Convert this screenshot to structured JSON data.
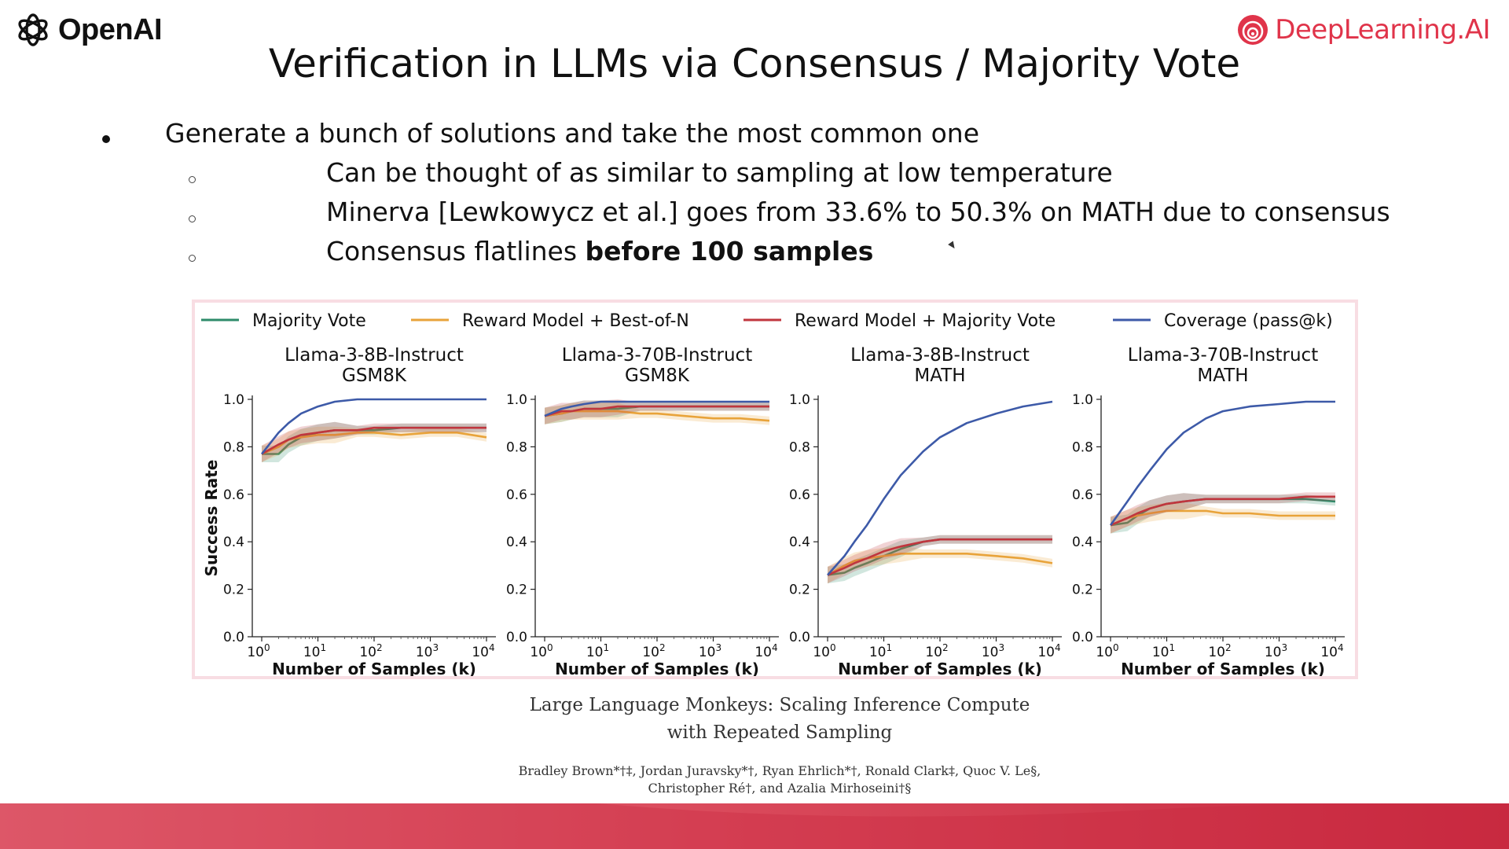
{
  "header": {
    "left_logo_text": "OpenAI",
    "right_logo_text": "DeepLearning.AI",
    "brand_color": "#e0344a"
  },
  "slide": {
    "title": "Verification in LLMs via Consensus / Majority Vote",
    "bullet": "Generate a bunch of solutions and take the most common one",
    "sub1": "Can be thought of as similar to sampling at low temperature",
    "sub2": "Minerva [Lewkowycz et al.] goes from 33.6% to 50.3% on MATH due to consensus",
    "sub3_plain": "Consensus flatlines ",
    "sub3_bold": "before 100 samples"
  },
  "citation": {
    "title_line1": "Large Language Monkeys: Scaling Inference Compute",
    "title_line2": "with Repeated Sampling",
    "authors_line1": "Bradley Brown*†‡, Jordan Juravsky*†, Ryan Ehrlich*†, Ronald Clark‡, Quoc V. Le§,",
    "authors_line2": "Christopher Ré†, and Azalia Mirhoseini†§"
  },
  "chart_data": {
    "type": "line",
    "legend": {
      "placement": "top",
      "entries": [
        "Majority Vote",
        "Reward Model + Best-of-N",
        "Reward Model + Majority Vote",
        "Coverage (pass@k)"
      ]
    },
    "colors": {
      "Majority Vote": "#2e8b6a",
      "Reward Model + Best-of-N": "#e8a33a",
      "Reward Model + Majority Vote": "#c0363e",
      "Coverage (pass@k)": "#3d5aa8"
    },
    "ylabel": "Success Rate",
    "xlabel": "Number of Samples (k)",
    "x": [
      1,
      2,
      3,
      5,
      10,
      20,
      50,
      100,
      300,
      1000,
      3000,
      10000
    ],
    "xscale": "log",
    "xlim": [
      1,
      10000
    ],
    "ylim": [
      0,
      1.0
    ],
    "yticks": [
      "0.0",
      "0.2",
      "0.4",
      "0.6",
      "0.8",
      "1.0"
    ],
    "panels": [
      {
        "title_line1": "Llama-3-8B-Instruct",
        "title_line2": "GSM8K",
        "series": [
          {
            "name": "Majority Vote",
            "values": [
              0.77,
              0.77,
              0.81,
              0.84,
              0.86,
              0.87,
              0.87,
              0.87,
              0.88,
              0.88,
              0.88,
              0.88
            ]
          },
          {
            "name": "Reward Model + Best-of-N",
            "values": [
              0.77,
              0.8,
              0.83,
              0.84,
              0.85,
              0.85,
              0.86,
              0.86,
              0.85,
              0.86,
              0.86,
              0.84
            ]
          },
          {
            "name": "Reward Model + Majority Vote",
            "values": [
              0.77,
              0.81,
              0.83,
              0.85,
              0.86,
              0.87,
              0.87,
              0.88,
              0.88,
              0.88,
              0.88,
              0.88
            ]
          },
          {
            "name": "Coverage (pass@k)",
            "values": [
              0.77,
              0.86,
              0.9,
              0.94,
              0.97,
              0.99,
              1.0,
              1.0,
              1.0,
              1.0,
              1.0,
              1.0
            ]
          }
        ]
      },
      {
        "title_line1": "Llama-3-70B-Instruct",
        "title_line2": "GSM8K",
        "series": [
          {
            "name": "Majority Vote",
            "values": [
              0.93,
              0.94,
              0.95,
              0.96,
              0.96,
              0.96,
              0.97,
              0.97,
              0.97,
              0.97,
              0.97,
              0.97
            ]
          },
          {
            "name": "Reward Model + Best-of-N",
            "values": [
              0.93,
              0.94,
              0.95,
              0.95,
              0.95,
              0.95,
              0.94,
              0.94,
              0.93,
              0.92,
              0.92,
              0.91
            ]
          },
          {
            "name": "Reward Model + Majority Vote",
            "values": [
              0.93,
              0.95,
              0.95,
              0.96,
              0.96,
              0.97,
              0.97,
              0.97,
              0.97,
              0.97,
              0.97,
              0.97
            ]
          },
          {
            "name": "Coverage (pass@k)",
            "values": [
              0.93,
              0.96,
              0.97,
              0.98,
              0.99,
              0.99,
              0.99,
              0.99,
              0.99,
              0.99,
              0.99,
              0.99
            ]
          }
        ]
      },
      {
        "title_line1": "Llama-3-8B-Instruct",
        "title_line2": "MATH",
        "series": [
          {
            "name": "Majority Vote",
            "values": [
              0.26,
              0.27,
              0.29,
              0.31,
              0.34,
              0.37,
              0.4,
              0.41,
              0.41,
              0.41,
              0.41,
              0.41
            ]
          },
          {
            "name": "Reward Model + Best-of-N",
            "values": [
              0.26,
              0.3,
              0.32,
              0.33,
              0.34,
              0.35,
              0.35,
              0.35,
              0.35,
              0.34,
              0.33,
              0.31
            ]
          },
          {
            "name": "Reward Model + Majority Vote",
            "values": [
              0.26,
              0.29,
              0.31,
              0.33,
              0.36,
              0.38,
              0.4,
              0.41,
              0.41,
              0.41,
              0.41,
              0.41
            ]
          },
          {
            "name": "Coverage (pass@k)",
            "values": [
              0.26,
              0.34,
              0.4,
              0.47,
              0.58,
              0.68,
              0.78,
              0.84,
              0.9,
              0.94,
              0.97,
              0.99
            ]
          }
        ]
      },
      {
        "title_line1": "Llama-3-70B-Instruct",
        "title_line2": "MATH",
        "series": [
          {
            "name": "Majority Vote",
            "values": [
              0.47,
              0.48,
              0.51,
              0.54,
              0.56,
              0.57,
              0.58,
              0.58,
              0.58,
              0.58,
              0.58,
              0.57
            ]
          },
          {
            "name": "Reward Model + Best-of-N",
            "values": [
              0.47,
              0.5,
              0.51,
              0.52,
              0.53,
              0.53,
              0.53,
              0.52,
              0.52,
              0.51,
              0.51,
              0.51
            ]
          },
          {
            "name": "Reward Model + Majority Vote",
            "values": [
              0.47,
              0.5,
              0.52,
              0.54,
              0.56,
              0.57,
              0.58,
              0.58,
              0.58,
              0.58,
              0.59,
              0.59
            ]
          },
          {
            "name": "Coverage (pass@k)",
            "values": [
              0.47,
              0.57,
              0.63,
              0.7,
              0.79,
              0.86,
              0.92,
              0.95,
              0.97,
              0.98,
              0.99,
              0.99
            ]
          }
        ]
      }
    ]
  }
}
